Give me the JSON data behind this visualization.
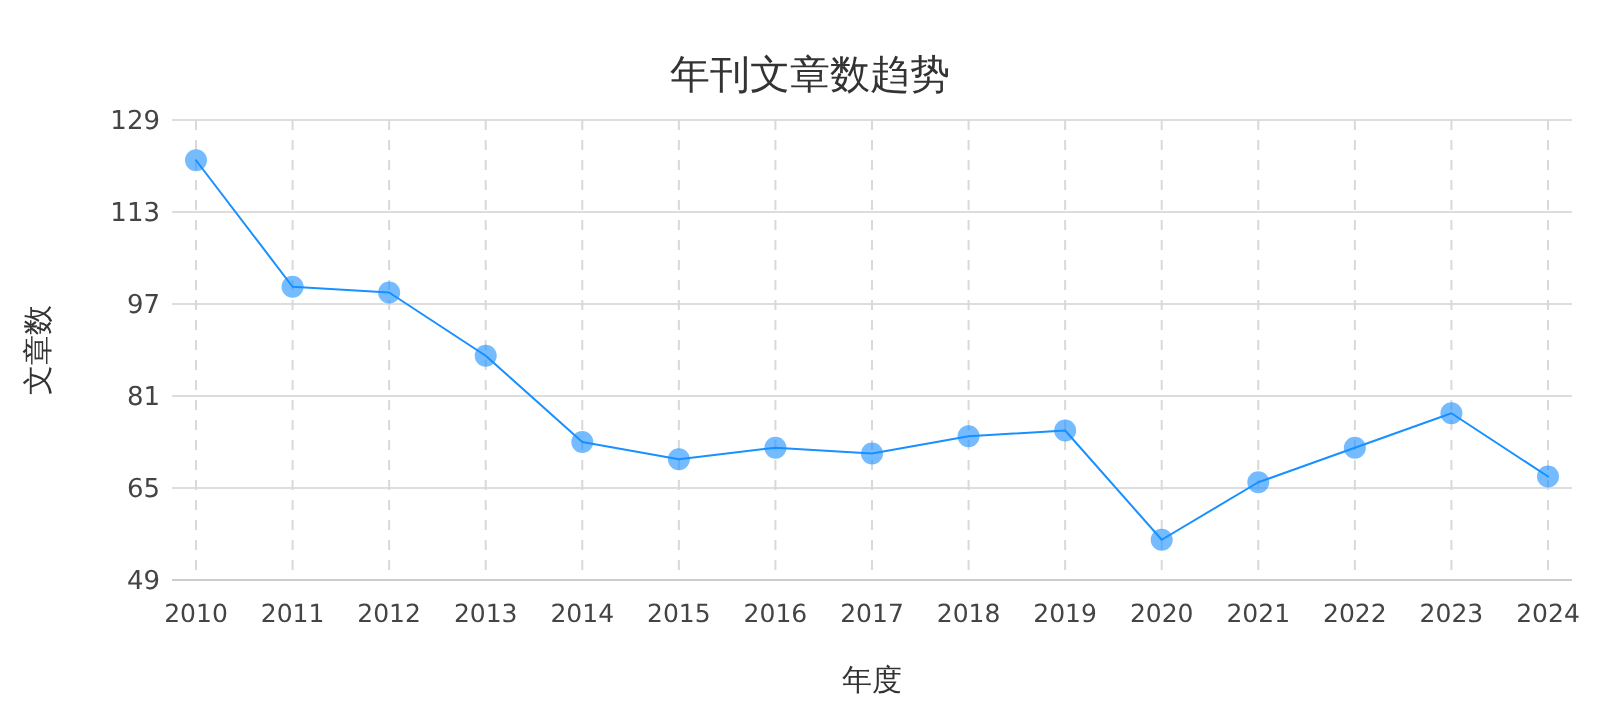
{
  "chart_data": {
    "type": "line",
    "title": "年刊文章数趋势",
    "xlabel": "年度",
    "ylabel": "文章数",
    "categories": [
      "2010",
      "2011",
      "2012",
      "2013",
      "2014",
      "2015",
      "2016",
      "2017",
      "2018",
      "2019",
      "2020",
      "2021",
      "2022",
      "2023",
      "2024"
    ],
    "series": [
      {
        "color": "#1890ff",
        "values": [
          122,
          100,
          99,
          88,
          73,
          70,
          72,
          71,
          74,
          75,
          56,
          66,
          72,
          78,
          67
        ]
      }
    ],
    "ylim": [
      49,
      129
    ],
    "yticks": [
      49,
      65,
      81,
      97,
      113,
      129
    ],
    "grid": true,
    "marker": "circle",
    "line_style": "solid"
  }
}
